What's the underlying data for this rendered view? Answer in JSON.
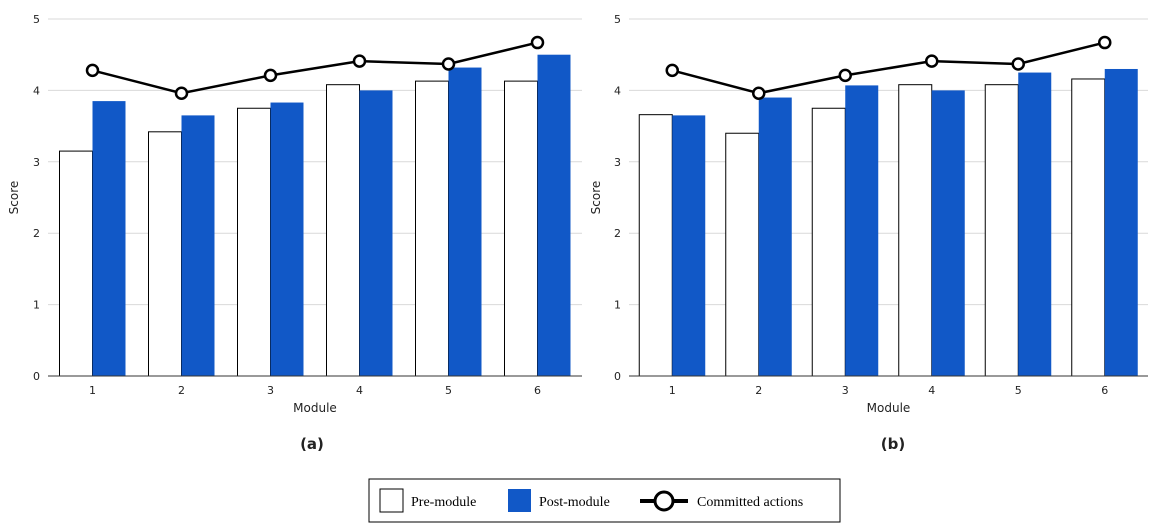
{
  "chart_data": [
    {
      "type": "bar",
      "caption": "(a)",
      "xlabel": "Module",
      "ylabel": "Score",
      "ylim": [
        0,
        5
      ],
      "yticks": [
        0,
        1,
        2,
        3,
        4,
        5
      ],
      "categories": [
        "1",
        "2",
        "3",
        "4",
        "5",
        "6"
      ],
      "grid": "horizontal",
      "series": [
        {
          "name": "Pre-module",
          "type": "bar",
          "values": [
            3.15,
            3.42,
            3.75,
            4.08,
            4.13,
            4.13
          ]
        },
        {
          "name": "Post-module",
          "type": "bar",
          "values": [
            3.85,
            3.65,
            3.83,
            4.0,
            4.32,
            4.5
          ]
        },
        {
          "name": "Committed actions",
          "type": "line",
          "values": [
            4.28,
            3.96,
            4.21,
            4.41,
            4.37,
            4.67
          ]
        }
      ]
    },
    {
      "type": "bar",
      "caption": "(b)",
      "xlabel": "Module",
      "ylabel": "Score",
      "ylim": [
        0,
        5
      ],
      "yticks": [
        0,
        1,
        2,
        3,
        4,
        5
      ],
      "categories": [
        "1",
        "2",
        "3",
        "4",
        "5",
        "6"
      ],
      "grid": "horizontal",
      "series": [
        {
          "name": "Pre-module",
          "type": "bar",
          "values": [
            3.66,
            3.4,
            3.75,
            4.08,
            4.08,
            4.16
          ]
        },
        {
          "name": "Post-module",
          "type": "bar",
          "values": [
            3.65,
            3.9,
            4.07,
            4.0,
            4.25,
            4.3
          ]
        },
        {
          "name": "Committed actions",
          "type": "line",
          "values": [
            4.28,
            3.96,
            4.21,
            4.41,
            4.37,
            4.67
          ]
        }
      ]
    }
  ],
  "legend": {
    "placement": "bottom-center",
    "items": [
      {
        "label": "Pre-module",
        "marker": "white-box"
      },
      {
        "label": "Post-module",
        "marker": "blue-box"
      },
      {
        "label": "Committed actions",
        "marker": "line-circle"
      }
    ]
  },
  "colors": {
    "pre_fill": "#ffffff",
    "pre_stroke": "#000000",
    "post_fill": "#1158c7",
    "line": "#000000",
    "grid": "#d9d9d9",
    "axis": "#333333"
  }
}
